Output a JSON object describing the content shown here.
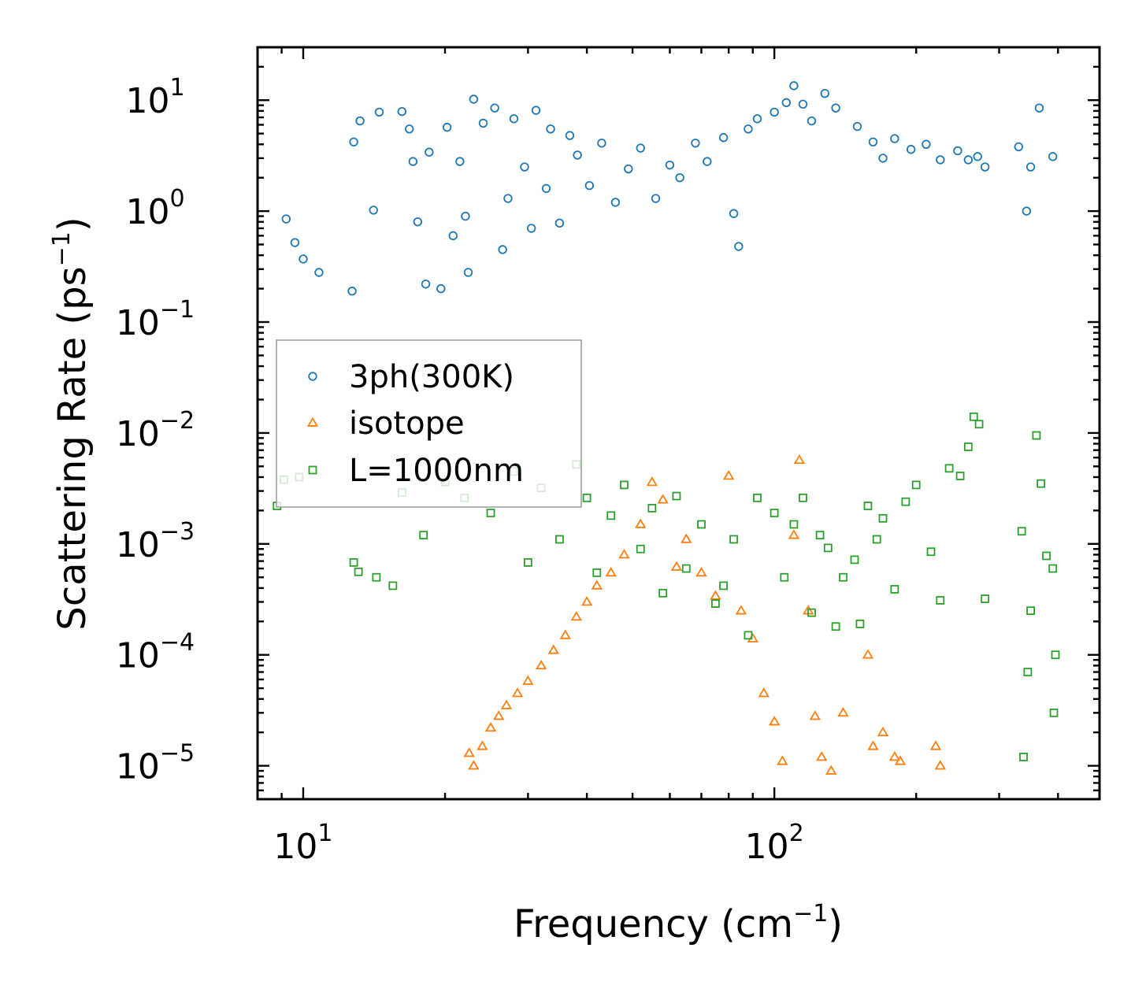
{
  "chart_data": {
    "type": "scatter",
    "title": "",
    "xlabel": "Frequency (cm",
    "xlabel_unit_exp": "−1",
    "xlabel_close": ")",
    "ylabel": "Scattering Rate (ps",
    "ylabel_unit_exp": "−1",
    "ylabel_close": ")",
    "xscale": "log",
    "yscale": "log",
    "xlim": [
      8,
      490
    ],
    "ylim": [
      5e-06,
      30
    ],
    "legend_position": "center-left",
    "x_ticks": [
      {
        "value": 10,
        "base": "10",
        "exp": "1"
      },
      {
        "value": 100,
        "base": "10",
        "exp": "2"
      }
    ],
    "y_ticks": [
      {
        "value": 10,
        "base": "10",
        "exp": "1"
      },
      {
        "value": 1,
        "base": "10",
        "exp": "0"
      },
      {
        "value": 0.1,
        "base": "10",
        "exp": "−1"
      },
      {
        "value": 0.01,
        "base": "10",
        "exp": "−2"
      },
      {
        "value": 0.001,
        "base": "10",
        "exp": "−3"
      },
      {
        "value": 0.0001,
        "base": "10",
        "exp": "−4"
      },
      {
        "value": 1e-05,
        "base": "10",
        "exp": "−5"
      }
    ],
    "series": [
      {
        "name": "3ph(300K)",
        "marker": "circle",
        "color": "#1f77b4",
        "points": [
          [
            9.2,
            0.85
          ],
          [
            9.6,
            0.52
          ],
          [
            10.0,
            0.37
          ],
          [
            10.8,
            0.28
          ],
          [
            12.7,
            0.19
          ],
          [
            12.8,
            4.2
          ],
          [
            13.2,
            6.5
          ],
          [
            14.1,
            1.02
          ],
          [
            14.5,
            7.8
          ],
          [
            16.2,
            7.9
          ],
          [
            16.8,
            5.5
          ],
          [
            17.1,
            2.8
          ],
          [
            17.5,
            0.8
          ],
          [
            18.2,
            0.22
          ],
          [
            18.5,
            3.4
          ],
          [
            19.6,
            0.2
          ],
          [
            20.2,
            5.7
          ],
          [
            20.8,
            0.6
          ],
          [
            21.5,
            2.8
          ],
          [
            22.1,
            0.9
          ],
          [
            22.4,
            0.28
          ],
          [
            23.0,
            10.2
          ],
          [
            24.1,
            6.2
          ],
          [
            25.5,
            8.5
          ],
          [
            26.5,
            0.45
          ],
          [
            27.2,
            1.3
          ],
          [
            28.0,
            6.8
          ],
          [
            29.5,
            2.5
          ],
          [
            30.5,
            0.7
          ],
          [
            31.2,
            8.1
          ],
          [
            32.8,
            1.6
          ],
          [
            33.5,
            5.5
          ],
          [
            35.0,
            0.78
          ],
          [
            36.8,
            4.8
          ],
          [
            38.2,
            3.2
          ],
          [
            40.5,
            1.7
          ],
          [
            43.0,
            4.1
          ],
          [
            46.0,
            1.2
          ],
          [
            49.0,
            2.4
          ],
          [
            52.0,
            3.7
          ],
          [
            56.0,
            1.3
          ],
          [
            60.0,
            2.6
          ],
          [
            63.0,
            2.0
          ],
          [
            68.0,
            4.1
          ],
          [
            72.0,
            2.8
          ],
          [
            78.0,
            4.6
          ],
          [
            82.0,
            0.95
          ],
          [
            84.0,
            0.48
          ],
          [
            88.0,
            5.5
          ],
          [
            92.0,
            6.8
          ],
          [
            100.0,
            7.8
          ],
          [
            106.0,
            9.5
          ],
          [
            110.0,
            13.5
          ],
          [
            115.0,
            9.2
          ],
          [
            120.0,
            6.5
          ],
          [
            128.0,
            11.5
          ],
          [
            135.0,
            8.5
          ],
          [
            150.0,
            5.8
          ],
          [
            162.0,
            4.2
          ],
          [
            170.0,
            3.0
          ],
          [
            180.0,
            4.5
          ],
          [
            195.0,
            3.6
          ],
          [
            210.0,
            4.0
          ],
          [
            225.0,
            2.9
          ],
          [
            245.0,
            3.5
          ],
          [
            258.0,
            2.9
          ],
          [
            270.0,
            3.1
          ],
          [
            280.0,
            2.5
          ],
          [
            330.0,
            3.8
          ],
          [
            343.0,
            1.0
          ],
          [
            350.0,
            2.5
          ],
          [
            365.0,
            8.5
          ],
          [
            390.0,
            3.1
          ]
        ]
      },
      {
        "name": "isotope",
        "marker": "triangle",
        "color": "#ff7f0e",
        "points": [
          [
            22.5,
            1.3e-05
          ],
          [
            23.0,
            1e-05
          ],
          [
            24.0,
            1.5e-05
          ],
          [
            25.0,
            2.2e-05
          ],
          [
            26.0,
            2.8e-05
          ],
          [
            27.0,
            3.5e-05
          ],
          [
            28.5,
            4.5e-05
          ],
          [
            30.0,
            5.8e-05
          ],
          [
            32.0,
            8e-05
          ],
          [
            34.0,
            0.00011
          ],
          [
            36.0,
            0.00015
          ],
          [
            38.0,
            0.00022
          ],
          [
            40.0,
            0.0003
          ],
          [
            42.0,
            0.00042
          ],
          [
            45.0,
            0.00055
          ],
          [
            48.0,
            0.0008
          ],
          [
            52.0,
            0.0015
          ],
          [
            55.0,
            0.0036
          ],
          [
            58.0,
            0.0025
          ],
          [
            62.0,
            0.00062
          ],
          [
            65.0,
            0.0011
          ],
          [
            70.0,
            0.00055
          ],
          [
            75.0,
            0.00034
          ],
          [
            80.0,
            0.0041
          ],
          [
            85.0,
            0.00025
          ],
          [
            90.0,
            0.00014
          ],
          [
            95.0,
            4.5e-05
          ],
          [
            100.0,
            2.5e-05
          ],
          [
            104.0,
            1.1e-05
          ],
          [
            110.0,
            0.0012
          ],
          [
            113.0,
            0.0057
          ],
          [
            118.0,
            0.00025
          ],
          [
            122.0,
            2.8e-05
          ],
          [
            126.0,
            1.2e-05
          ],
          [
            132.0,
            9e-06
          ],
          [
            140.0,
            3e-05
          ],
          [
            158.0,
            0.0001
          ],
          [
            162.0,
            1.5e-05
          ],
          [
            170.0,
            2e-05
          ],
          [
            180.0,
            1.2e-05
          ],
          [
            185.0,
            1.1e-05
          ],
          [
            220.0,
            1.5e-05
          ],
          [
            225.0,
            1e-05
          ]
        ]
      },
      {
        "name": "L=1000nm",
        "marker": "square",
        "color": "#2ca02c",
        "points": [
          [
            8.8,
            0.0022
          ],
          [
            9.1,
            0.0038
          ],
          [
            9.8,
            0.004
          ],
          [
            12.8,
            0.00068
          ],
          [
            13.1,
            0.00056
          ],
          [
            14.3,
            0.0005
          ],
          [
            15.5,
            0.00042
          ],
          [
            16.2,
            0.0029
          ],
          [
            18.0,
            0.0012
          ],
          [
            20.0,
            0.0036
          ],
          [
            22.0,
            0.0026
          ],
          [
            25.0,
            0.0019
          ],
          [
            28.0,
            0.0045
          ],
          [
            30.0,
            0.00068
          ],
          [
            32.0,
            0.0032
          ],
          [
            35.0,
            0.0011
          ],
          [
            38.0,
            0.0052
          ],
          [
            40.0,
            0.0026
          ],
          [
            42.0,
            0.00055
          ],
          [
            45.0,
            0.0018
          ],
          [
            48.0,
            0.0034
          ],
          [
            52.0,
            0.0009
          ],
          [
            55.0,
            0.0021
          ],
          [
            58.0,
            0.00036
          ],
          [
            62.0,
            0.0027
          ],
          [
            65.0,
            0.0006
          ],
          [
            70.0,
            0.0015
          ],
          [
            75.0,
            0.00029
          ],
          [
            78.0,
            0.00042
          ],
          [
            82.0,
            0.0011
          ],
          [
            88.0,
            0.00015
          ],
          [
            92.0,
            0.0026
          ],
          [
            100.0,
            0.0019
          ],
          [
            105.0,
            0.0005
          ],
          [
            110.0,
            0.0015
          ],
          [
            115.0,
            0.0026
          ],
          [
            120.0,
            0.00024
          ],
          [
            125.0,
            0.0012
          ],
          [
            130.0,
            0.00092
          ],
          [
            135.0,
            0.00018
          ],
          [
            140.0,
            0.0005
          ],
          [
            148.0,
            0.00072
          ],
          [
            152.0,
            0.00019
          ],
          [
            158.0,
            0.0022
          ],
          [
            165.0,
            0.0011
          ],
          [
            170.0,
            0.0017
          ],
          [
            180.0,
            0.00039
          ],
          [
            190.0,
            0.0024
          ],
          [
            200.0,
            0.0034
          ],
          [
            215.0,
            0.00085
          ],
          [
            225.0,
            0.00031
          ],
          [
            235.0,
            0.0048
          ],
          [
            248.0,
            0.0041
          ],
          [
            258.0,
            0.0075
          ],
          [
            265.0,
            0.014
          ],
          [
            272.0,
            0.012
          ],
          [
            280.0,
            0.00032
          ],
          [
            335.0,
            0.0013
          ],
          [
            338.0,
            1.2e-05
          ],
          [
            345.0,
            7e-05
          ],
          [
            350.0,
            0.00025
          ],
          [
            360.0,
            0.0095
          ],
          [
            368.0,
            0.0035
          ],
          [
            378.0,
            0.00078
          ],
          [
            390.0,
            0.0006
          ],
          [
            392.0,
            3e-05
          ],
          [
            395.0,
            0.0001
          ]
        ]
      }
    ]
  }
}
